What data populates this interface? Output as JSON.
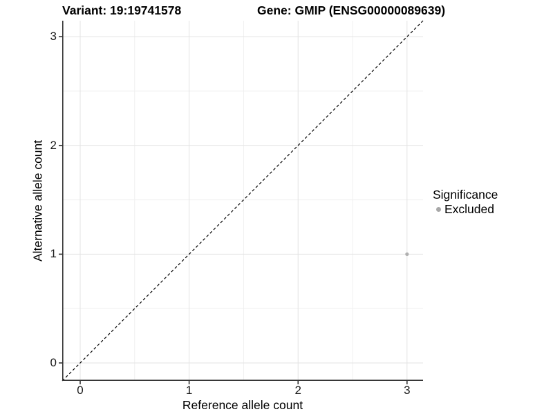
{
  "titles": {
    "variant": "Variant: 19:19741578",
    "gene": "Gene: GMIP (ENSG00000089639)"
  },
  "chart_data": {
    "type": "scatter",
    "title_left": "Variant: 19:19741578",
    "title_right": "Gene: GMIP (ENSG00000089639)",
    "xlabel": "Reference allele count",
    "ylabel": "Alternative allele count",
    "xlim": [
      -0.165,
      3.147
    ],
    "ylim": [
      -0.165,
      3.147
    ],
    "x_ticks": [
      0,
      1,
      2,
      3
    ],
    "y_ticks": [
      0,
      1,
      2,
      3
    ],
    "x_minor_ticks": [
      0.5,
      1.5,
      2.5
    ],
    "y_minor_ticks": [
      0.5,
      1.5,
      2.5
    ],
    "grid": true,
    "legend_position": "right",
    "reference_line": {
      "equation": "y = x",
      "style": "dashed",
      "color": "#000000"
    },
    "series": [
      {
        "name": "Excluded",
        "color": "#b0b0b0",
        "points": [
          {
            "x": 3,
            "y": 1
          }
        ]
      }
    ],
    "legend": {
      "title": "Significance",
      "entries": [
        {
          "label": "Excluded",
          "color": "#a8a8a8"
        }
      ]
    }
  },
  "colors": {
    "background": "#ffffff",
    "axis_line": "#333333",
    "major_grid": "#e3e3e3",
    "minor_grid": "#f0f0f0",
    "tick_text": "#1a1a1a",
    "point": "#b0b0b0"
  }
}
